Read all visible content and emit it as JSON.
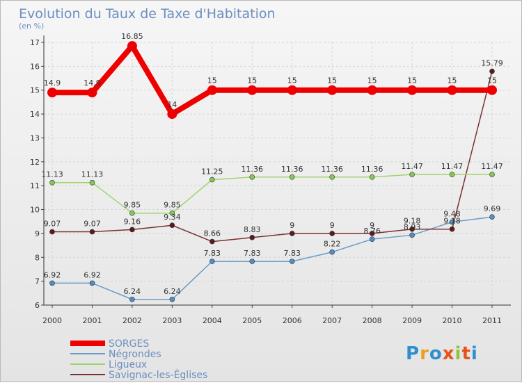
{
  "chart_data": {
    "type": "line",
    "title": "Evolution du Taux de Taxe d'Habitation",
    "subtitle": "(en %)",
    "xlabel": "",
    "ylabel": "",
    "ylim": [
      6,
      17
    ],
    "yticks": [
      "6",
      "7",
      "8",
      "9",
      "10",
      "11",
      "12",
      "13",
      "14",
      "15",
      "16",
      "17"
    ],
    "categories": [
      "2000",
      "2001",
      "2002",
      "2003",
      "2004",
      "2005",
      "2006",
      "2007",
      "2008",
      "2009",
      "2010",
      "2011"
    ],
    "series": [
      {
        "name": "Négrondes",
        "color": "#6b9bc6",
        "marker": "#4f8fc9",
        "values": [
          6.92,
          6.92,
          6.24,
          6.24,
          7.83,
          7.83,
          7.83,
          8.22,
          8.76,
          8.93,
          9.48,
          9.69
        ],
        "labels": [
          "6.92",
          "6.92",
          "6.24",
          "6.24",
          "7.83",
          "7.83",
          "7.83",
          "8.22",
          "8.76",
          "8.93",
          "9.48",
          "9.69"
        ]
      },
      {
        "name": "Savignac-les-Églises",
        "color": "#7a3030",
        "marker": "#5e1a1a",
        "values": [
          9.07,
          9.07,
          9.16,
          9.34,
          8.66,
          8.83,
          9,
          9,
          9,
          9.18,
          9.18,
          15.79
        ],
        "labels": [
          "9.07",
          "9.07",
          "9.16",
          "9.34",
          "8.66",
          "8.83",
          "9",
          "9",
          "9",
          "9.18",
          "9.18",
          "15.79"
        ]
      },
      {
        "name": "Ligueux",
        "color": "#9ed46e",
        "marker": "#86c850",
        "values": [
          11.13,
          11.13,
          9.85,
          9.85,
          11.25,
          11.36,
          11.36,
          11.36,
          11.36,
          11.47,
          11.47,
          11.47
        ],
        "labels": [
          "11.13",
          "11.13",
          "9.85",
          "9.85",
          "11.25",
          "11.36",
          "11.36",
          "11.36",
          "11.36",
          "11.47",
          "11.47",
          "11.47"
        ]
      },
      {
        "name": "SORGES",
        "color": "#ee0000",
        "marker": "#ee0000",
        "values": [
          14.9,
          14.9,
          16.85,
          14,
          15,
          15,
          15,
          15,
          15,
          15,
          15,
          15
        ],
        "labels": [
          "14.9",
          "14.9",
          "16.85",
          "14",
          "15",
          "15",
          "15",
          "15",
          "15",
          "15",
          "15",
          "15"
        ]
      }
    ],
    "legend": {
      "position": "bottom-left",
      "entries": [
        "SORGES",
        "Négrondes",
        "Ligueux",
        "Savignac-les-Églises"
      ]
    }
  },
  "logo": {
    "text": "Proxiti"
  }
}
